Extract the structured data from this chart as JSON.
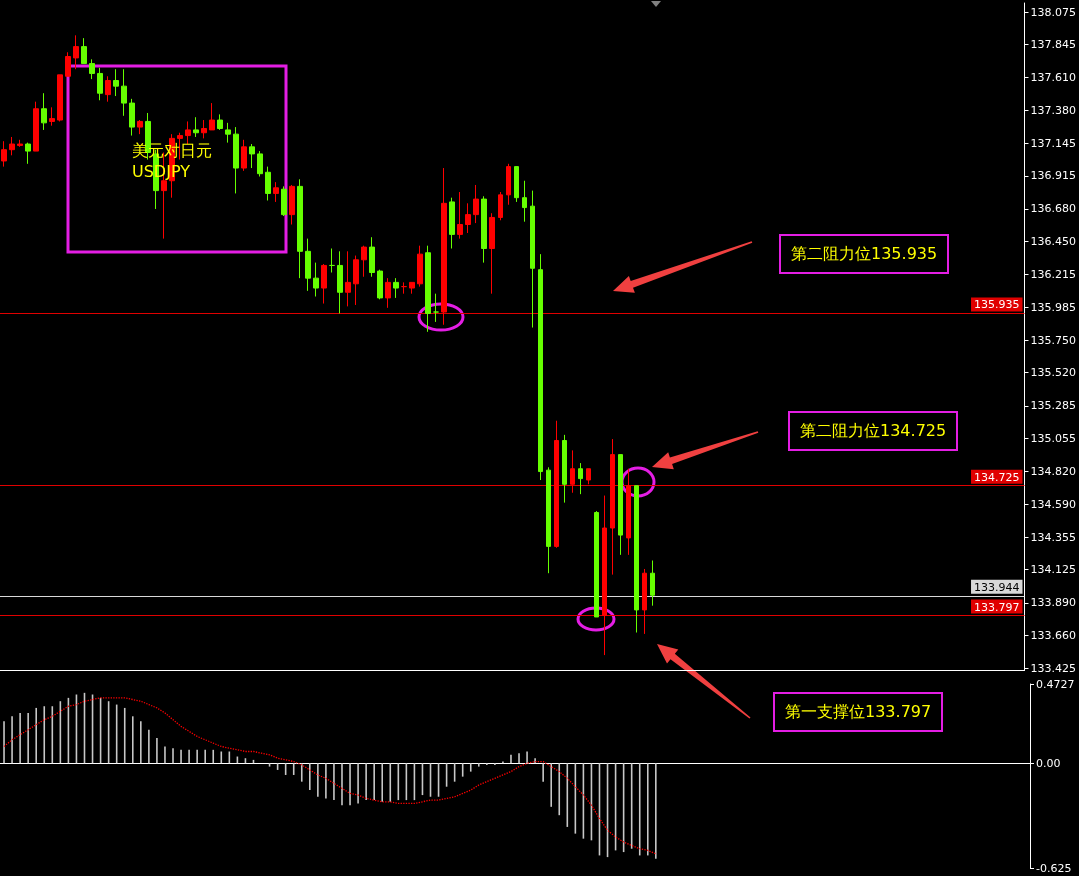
{
  "chart_data": [
    {
      "type": "candlestick",
      "categories": [
        null,
        null,
        null,
        null,
        null,
        null,
        null,
        null,
        null,
        null,
        null,
        null,
        null,
        null,
        null,
        null,
        null,
        null,
        null,
        null,
        null,
        null,
        null,
        null,
        null,
        null,
        null,
        null,
        null,
        null,
        null,
        null,
        null,
        null,
        null,
        null,
        null,
        null,
        null,
        null,
        null,
        null,
        null,
        null,
        null,
        null,
        null,
        null,
        null,
        null,
        null,
        null,
        null,
        null,
        null,
        null,
        null,
        null,
        null,
        null,
        null,
        null,
        null,
        null,
        null,
        null,
        null,
        null,
        null,
        null,
        null,
        null,
        null,
        null,
        null,
        null,
        null,
        null,
        null,
        null,
        null,
        null,
        null,
        null,
        null,
        null,
        null,
        null,
        null,
        null,
        null,
        null,
        null,
        null,
        null,
        null,
        null,
        null,
        null,
        null,
        null,
        null,
        null,
        null,
        null,
        null,
        null,
        null,
        null,
        null,
        null,
        null,
        null,
        null,
        null,
        null,
        null,
        null,
        null,
        null,
        null,
        null,
        null,
        null,
        null,
        null,
        null,
        null
      ],
      "ohlc": [
        [
          137.02,
          137.16,
          136.98,
          137.1
        ],
        [
          137.1,
          137.19,
          137.06,
          137.14
        ],
        [
          137.13,
          137.17,
          137.12,
          137.14
        ],
        [
          137.14,
          137.15,
          137.0,
          137.09
        ],
        [
          137.09,
          137.44,
          137.09,
          137.39
        ],
        [
          137.39,
          137.5,
          137.24,
          137.29
        ],
        [
          137.3,
          137.4,
          137.27,
          137.32
        ],
        [
          137.31,
          137.63,
          137.3,
          137.63
        ],
        [
          137.62,
          137.79,
          137.62,
          137.76
        ],
        [
          137.75,
          137.91,
          137.67,
          137.83
        ],
        [
          137.83,
          137.89,
          137.71,
          137.71
        ],
        [
          137.71,
          137.74,
          137.6,
          137.64
        ],
        [
          137.64,
          137.68,
          137.45,
          137.5
        ],
        [
          137.49,
          137.62,
          137.44,
          137.59
        ],
        [
          137.59,
          137.67,
          137.48,
          137.55
        ],
        [
          137.55,
          137.67,
          137.34,
          137.43
        ],
        [
          137.43,
          137.46,
          137.2,
          137.26
        ],
        [
          137.26,
          137.31,
          137.21,
          137.3
        ],
        [
          137.3,
          137.36,
          137.03,
          137.08
        ],
        [
          137.07,
          137.1,
          136.68,
          136.81
        ],
        [
          136.81,
          137.08,
          136.47,
          136.88
        ],
        [
          136.88,
          137.21,
          136.76,
          137.18
        ],
        [
          137.18,
          137.22,
          137.03,
          137.2
        ],
        [
          137.2,
          137.3,
          137.14,
          137.24
        ],
        [
          137.24,
          137.33,
          137.19,
          137.22
        ],
        [
          137.22,
          137.31,
          137.18,
          137.25
        ],
        [
          137.24,
          137.43,
          137.24,
          137.31
        ],
        [
          137.31,
          137.35,
          137.24,
          137.25
        ],
        [
          137.24,
          137.29,
          137.15,
          137.21
        ],
        [
          137.21,
          137.26,
          136.79,
          136.97
        ],
        [
          136.97,
          137.17,
          136.95,
          137.12
        ],
        [
          137.12,
          137.14,
          136.97,
          137.07
        ],
        [
          137.07,
          137.09,
          136.91,
          136.93
        ],
        [
          136.94,
          136.98,
          136.74,
          136.79
        ],
        [
          136.79,
          136.87,
          136.73,
          136.83
        ],
        [
          136.82,
          136.84,
          136.63,
          136.64
        ],
        [
          136.64,
          136.85,
          136.57,
          136.84
        ],
        [
          136.84,
          136.89,
          136.19,
          136.38
        ],
        [
          136.38,
          136.47,
          136.1,
          136.19
        ],
        [
          136.19,
          136.3,
          136.06,
          136.12
        ],
        [
          136.12,
          136.29,
          136.01,
          136.28
        ],
        [
          136.28,
          136.4,
          136.23,
          136.28
        ],
        [
          136.28,
          136.38,
          135.94,
          136.09
        ],
        [
          136.09,
          136.38,
          135.99,
          136.16
        ],
        [
          136.15,
          136.35,
          136.0,
          136.32
        ],
        [
          136.32,
          136.42,
          136.2,
          136.41
        ],
        [
          136.41,
          136.48,
          136.2,
          136.23
        ],
        [
          136.24,
          136.25,
          136.04,
          136.05
        ],
        [
          136.05,
          136.19,
          135.98,
          136.16
        ],
        [
          136.16,
          136.19,
          136.05,
          136.12
        ],
        [
          136.13,
          136.16,
          136.08,
          136.13
        ],
        [
          136.12,
          136.16,
          136.08,
          136.16
        ],
        [
          136.15,
          136.42,
          136.13,
          136.36
        ],
        [
          136.37,
          136.42,
          135.81,
          135.94
        ],
        [
          135.95,
          136.08,
          135.88,
          135.95
        ],
        [
          135.95,
          136.97,
          135.86,
          136.72
        ],
        [
          136.73,
          136.76,
          136.4,
          136.5
        ],
        [
          136.5,
          136.8,
          136.47,
          136.57
        ],
        [
          136.57,
          136.72,
          136.51,
          136.64
        ],
        [
          136.64,
          136.85,
          136.58,
          136.75
        ],
        [
          136.75,
          136.77,
          136.3,
          136.4
        ],
        [
          136.4,
          136.65,
          136.08,
          136.62
        ],
        [
          136.62,
          136.8,
          136.6,
          136.78
        ],
        [
          136.78,
          137.0,
          136.71,
          136.98
        ],
        [
          136.98,
          136.98,
          136.73,
          136.76
        ],
        [
          136.76,
          136.88,
          136.59,
          136.69
        ],
        [
          136.7,
          136.81,
          135.84,
          136.26
        ],
        [
          136.25,
          136.36,
          134.76,
          134.82
        ],
        [
          134.83,
          134.85,
          134.1,
          134.29
        ],
        [
          134.29,
          135.18,
          134.28,
          135.04
        ],
        [
          135.04,
          135.08,
          134.6,
          134.73
        ],
        [
          134.73,
          134.97,
          134.67,
          134.84
        ],
        [
          134.84,
          134.88,
          134.66,
          134.77
        ],
        [
          134.76,
          134.84,
          134.73,
          134.84
        ],
        [
          134.53,
          134.54,
          133.79,
          133.79
        ],
        [
          133.8,
          134.65,
          133.52,
          134.42
        ],
        [
          134.42,
          135.05,
          134.09,
          134.94
        ],
        [
          134.94,
          134.94,
          134.23,
          134.37
        ],
        [
          134.35,
          134.84,
          134.23,
          134.72
        ],
        [
          134.72,
          134.72,
          133.68,
          133.84
        ],
        [
          133.84,
          134.13,
          133.67,
          134.1
        ],
        [
          134.1,
          134.19,
          133.87,
          133.944
        ],
        null,
        null,
        null,
        null,
        null,
        null,
        null,
        null,
        null,
        null,
        null,
        null,
        null,
        null,
        null,
        null,
        null,
        null,
        null,
        null,
        null,
        null,
        null,
        null,
        null,
        null,
        null,
        null,
        null,
        null,
        null,
        null,
        null,
        null,
        null,
        null,
        null,
        null,
        null,
        null,
        null,
        null,
        null,
        null,
        null,
        null
      ],
      "colors": [
        "#ff0000",
        "#ff0000",
        "#ff0000",
        "#66ff00",
        "#ff0000",
        "#66ff00",
        "#ff0000",
        "#ff0000",
        "#ff0000",
        "#ff0000",
        "#66ff00",
        "#66ff00",
        "#66ff00",
        "#ff0000",
        "#66ff00",
        "#66ff00",
        "#66ff00",
        "#ff0000",
        "#66ff00",
        "#66ff00",
        "#ff0000",
        "#ff0000",
        "#ff0000",
        "#ff0000",
        "#66ff00",
        "#ff0000",
        "#ff0000",
        "#66ff00",
        "#66ff00",
        "#66ff00",
        "#ff0000",
        "#66ff00",
        "#66ff00",
        "#66ff00",
        "#ff0000",
        "#66ff00",
        "#ff0000",
        "#66ff00",
        "#66ff00",
        "#66ff00",
        "#ff0000",
        "#66ff00",
        "#66ff00",
        "#ff0000",
        "#ff0000",
        "#ff0000",
        "#66ff00",
        "#66ff00",
        "#ff0000",
        "#66ff00",
        "#ff0000",
        "#ff0000",
        "#ff0000",
        "#66ff00",
        "#66ff00",
        "#ff0000",
        "#66ff00",
        "#ff0000",
        "#ff0000",
        "#ff0000",
        "#66ff00",
        "#ff0000",
        "#ff0000",
        "#ff0000",
        "#66ff00",
        "#66ff00",
        "#66ff00",
        "#66ff00",
        "#66ff00",
        "#ff0000",
        "#66ff00",
        "#ff0000",
        "#66ff00",
        "#ff0000",
        "#66ff00",
        "#ff0000",
        "#ff0000",
        "#66ff00",
        "#ff0000",
        "#66ff00",
        "#ff0000",
        "#66ff00",
        null,
        null,
        null,
        null,
        null,
        null,
        null,
        null,
        null,
        null,
        null,
        null,
        null,
        null,
        null,
        null,
        null,
        null,
        null,
        null,
        null,
        null,
        null,
        null,
        null,
        null,
        null,
        null,
        null,
        null,
        null,
        null,
        null,
        null,
        null,
        null,
        null,
        null,
        null,
        null,
        null,
        null,
        null,
        null,
        null,
        null
      ],
      "ylim": [
        133.411,
        138.139
      ],
      "yticks": [
        138.075,
        137.845,
        {
          "value": 137.61,
          "label": "137.610"
        },
        {
          "value": 137.38,
          "label": "137.380"
        },
        137.145,
        136.915,
        {
          "value": 136.68,
          "label": "136.680"
        },
        {
          "value": 136.45,
          "label": "136.450"
        },
        136.215,
        135.985,
        {
          "value": 135.75,
          "label": "135.750"
        },
        {
          "value": 135.52,
          "label": "135.520"
        },
        135.285,
        135.055,
        {
          "value": 134.82,
          "label": "134.820"
        },
        {
          "value": 134.59,
          "label": "134.590"
        },
        134.355,
        134.125,
        {
          "value": 133.89,
          "label": "133.890"
        },
        {
          "value": 133.66,
          "label": "133.660"
        },
        133.425
      ],
      "tick_labels": "y",
      "ref_lines": [
        {
          "axis": "y",
          "value": 135.935,
          "label": "135.935",
          "color": "#e00000"
        },
        {
          "axis": "y",
          "value": 134.725,
          "label": "134.725",
          "color": "#e00000"
        },
        {
          "axis": "y",
          "value": 133.944,
          "label": "133.944",
          "color": "#d8d8d8"
        },
        {
          "axis": "y",
          "value": 133.797,
          "label": "133.797",
          "color": "#e00000"
        }
      ],
      "annotations": [
        "美元对日元",
        "USDJPY",
        "第二阻力位135.935",
        "第二阻力位134.725",
        "第一支撑位133.797"
      ]
    },
    {
      "type": "bar",
      "categories": [
        null,
        null,
        null,
        null,
        null,
        null,
        null,
        null,
        null,
        null,
        null,
        null,
        null,
        null,
        null,
        null,
        null,
        null,
        null,
        null,
        null,
        null,
        null,
        null,
        null,
        null,
        null,
        null,
        null,
        null,
        null,
        null,
        null,
        null,
        null,
        null,
        null,
        null,
        null,
        null,
        null,
        null,
        null,
        null,
        null,
        null,
        null,
        null,
        null,
        null,
        null,
        null,
        null,
        null,
        null,
        null,
        null,
        null,
        null,
        null,
        null,
        null,
        null,
        null,
        null,
        null,
        null,
        null,
        null,
        null,
        null,
        null,
        null,
        null,
        null,
        null,
        null,
        null,
        null,
        null,
        null,
        null,
        null,
        null,
        null,
        null,
        null,
        null,
        null,
        null,
        null,
        null,
        null,
        null,
        null,
        null,
        null,
        null,
        null,
        null,
        null,
        null,
        null,
        null,
        null,
        null,
        null,
        null,
        null,
        null,
        null,
        null,
        null,
        null,
        null,
        null,
        null,
        null,
        null,
        null,
        null,
        null,
        null,
        null,
        null,
        null,
        null,
        null
      ],
      "series": [
        {
          "type": "bar",
          "color": "#c8c8c8",
          "values": [
            0.25,
            0.28,
            0.3,
            0.3,
            0.33,
            0.34,
            0.34,
            0.37,
            0.39,
            0.41,
            0.42,
            0.41,
            0.39,
            0.37,
            0.35,
            0.33,
            0.28,
            0.25,
            0.2,
            0.15,
            0.1,
            0.09,
            0.08,
            0.08,
            0.08,
            0.08,
            0.08,
            0.07,
            0.07,
            0.04,
            0.03,
            0.02,
            0.0,
            -0.02,
            -0.04,
            -0.07,
            -0.07,
            -0.11,
            -0.16,
            -0.2,
            -0.21,
            -0.22,
            -0.25,
            -0.25,
            -0.24,
            -0.22,
            -0.22,
            -0.23,
            -0.23,
            -0.22,
            -0.22,
            -0.22,
            -0.19,
            -0.2,
            -0.2,
            -0.14,
            -0.11,
            -0.08,
            -0.05,
            -0.02,
            -0.01,
            -0.01,
            0.01,
            0.05,
            0.06,
            0.07,
            0.03,
            -0.11,
            -0.26,
            -0.31,
            -0.38,
            -0.42,
            -0.45,
            -0.46,
            -0.55,
            -0.56,
            -0.52,
            -0.53,
            -0.51,
            -0.55,
            -0.55,
            -0.57,
            null,
            null,
            null,
            null,
            null,
            null,
            null,
            null,
            null,
            null,
            null,
            null,
            null,
            null,
            null,
            null,
            null,
            null,
            null,
            null,
            null,
            null,
            null,
            null,
            null,
            null,
            null,
            null,
            null,
            null,
            null,
            null,
            null,
            null,
            null,
            null,
            null,
            null,
            null,
            null,
            null,
            null,
            null,
            null,
            null,
            null
          ]
        },
        {
          "type": "line",
          "color": "#ff0000",
          "line_style": "dotted",
          "values": [
            0.1,
            0.14,
            0.17,
            0.2,
            0.23,
            0.26,
            0.28,
            0.31,
            0.34,
            0.35,
            0.37,
            0.38,
            0.39,
            0.39,
            0.39,
            0.39,
            0.38,
            0.37,
            0.35,
            0.33,
            0.3,
            0.26,
            0.22,
            0.19,
            0.16,
            0.14,
            0.12,
            0.1,
            0.09,
            0.08,
            0.07,
            0.07,
            0.06,
            0.05,
            0.03,
            0.02,
            0.01,
            -0.01,
            -0.04,
            -0.07,
            -0.09,
            -0.12,
            -0.15,
            -0.18,
            -0.19,
            -0.21,
            -0.22,
            -0.23,
            -0.23,
            -0.24,
            -0.24,
            -0.24,
            -0.23,
            -0.22,
            -0.22,
            -0.21,
            -0.2,
            -0.18,
            -0.16,
            -0.13,
            -0.11,
            -0.09,
            -0.07,
            -0.05,
            -0.02,
            0.0,
            0.01,
            0.01,
            -0.02,
            -0.05,
            -0.09,
            -0.14,
            -0.19,
            -0.25,
            -0.33,
            -0.4,
            -0.44,
            -0.47,
            -0.49,
            -0.51,
            -0.52,
            -0.54,
            null,
            null,
            null,
            null,
            null,
            null,
            null,
            null,
            null,
            null,
            null,
            null,
            null,
            null,
            null,
            null,
            null,
            null,
            null,
            null,
            null,
            null,
            null,
            null,
            null,
            null,
            null,
            null,
            null,
            null,
            null,
            null,
            null,
            null,
            null,
            null,
            null,
            null,
            null,
            null,
            null,
            null,
            null,
            null,
            null,
            null
          ]
        }
      ],
      "ylim": [
        -0.625,
        0.4727
      ],
      "yticks": [
        0.4727,
        {
          "value": 0,
          "label": "0.00"
        },
        -0.625
      ],
      "tick_labels": "y"
    }
  ]
}
